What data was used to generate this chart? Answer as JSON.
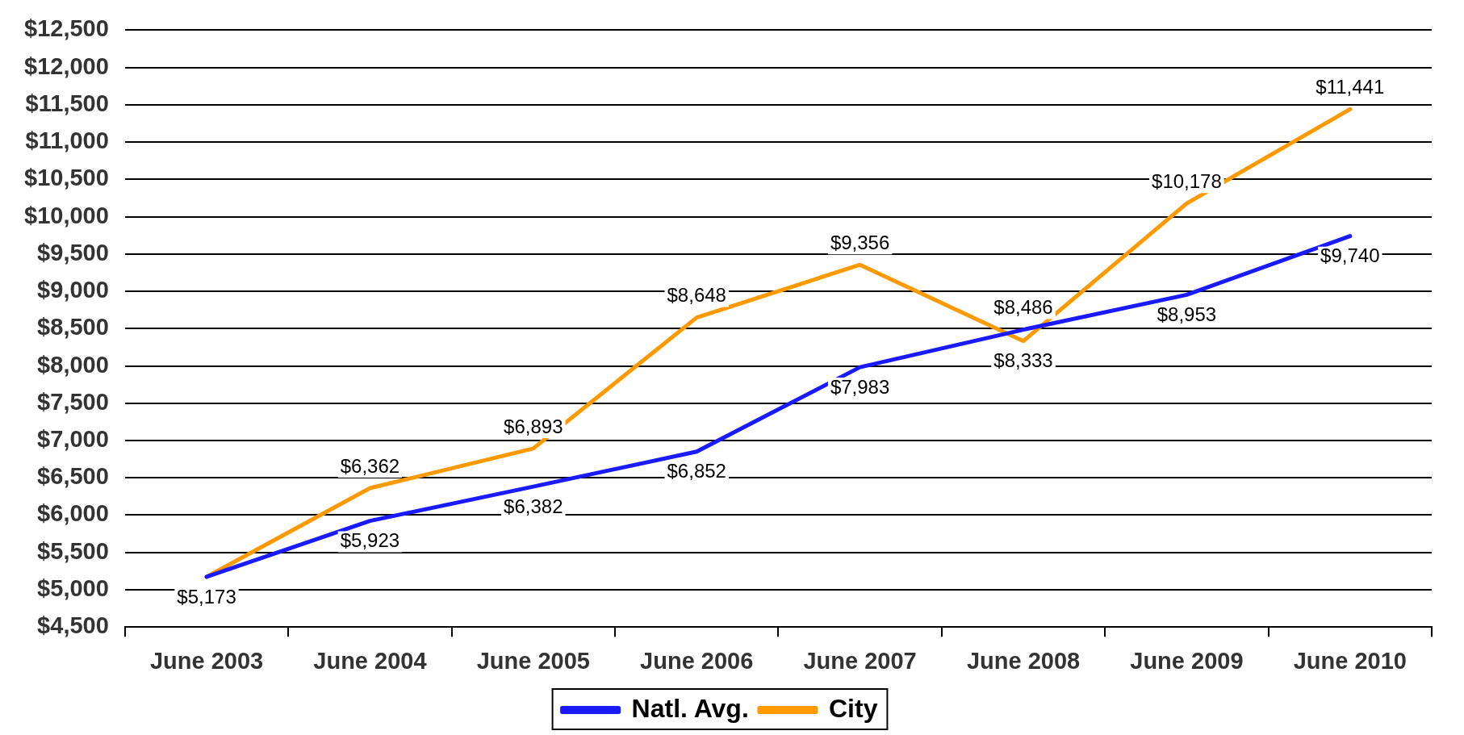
{
  "chart_data": {
    "type": "line",
    "categories": [
      "June 2003",
      "June 2004",
      "June 2005",
      "June 2006",
      "June 2007",
      "June 2008",
      "June 2009",
      "June 2010"
    ],
    "series": [
      {
        "name": "Natl. Avg.",
        "color": "#1a1aff",
        "values": [
          5173,
          5923,
          6382,
          6852,
          7983,
          8486,
          8953,
          9740
        ],
        "value_labels": [
          "$5,173",
          "$5,923",
          "$6,382",
          "$6,852",
          "$7,983",
          "$8,486",
          "$8,953",
          "$9,740"
        ]
      },
      {
        "name": "City",
        "color": "#ff9900",
        "values": [
          5173,
          6362,
          6893,
          8648,
          9356,
          8333,
          10178,
          11441
        ],
        "value_labels": [
          null,
          "$6,362",
          "$6,893",
          "$8,648",
          "$9,356",
          "$8,333",
          "$10,178",
          "$11,441"
        ]
      }
    ],
    "ylim": [
      4500,
      12500
    ],
    "yticks": [
      {
        "value": 4500,
        "label": "$4,500"
      },
      {
        "value": 5000,
        "label": "$5,000"
      },
      {
        "value": 5500,
        "label": "$5,500"
      },
      {
        "value": 6000,
        "label": "$6,000"
      },
      {
        "value": 6500,
        "label": "$6,500"
      },
      {
        "value": 7000,
        "label": "$7,000"
      },
      {
        "value": 7500,
        "label": "$7,500"
      },
      {
        "value": 8000,
        "label": "$8,000"
      },
      {
        "value": 8500,
        "label": "$8,500"
      },
      {
        "value": 9000,
        "label": "$9,000"
      },
      {
        "value": 9500,
        "label": "$9,500"
      },
      {
        "value": 10000,
        "label": "$10,000"
      },
      {
        "value": 10500,
        "label": "$10,500"
      },
      {
        "value": 11000,
        "label": "$11,000"
      },
      {
        "value": 11500,
        "label": "$11,500"
      },
      {
        "value": 12000,
        "label": "$12,000"
      },
      {
        "value": 12500,
        "label": "$12,500"
      }
    ],
    "grid": "y",
    "legend": "bottom",
    "marker": "none",
    "line_style": "solid"
  }
}
